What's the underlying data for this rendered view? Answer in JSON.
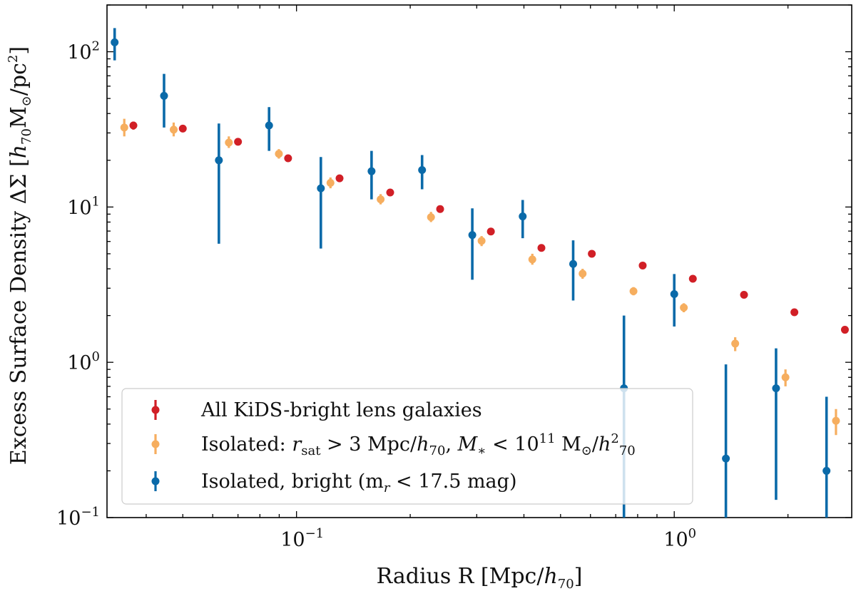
{
  "chart_data": {
    "type": "scatter",
    "title": "",
    "xlabel": {
      "main": "Radius R [Mpc/",
      "unit_var": "h",
      "unit_sub": "70",
      "close": "]"
    },
    "ylabel": {
      "main": "Excess Surface Density ΔΣ [",
      "var": "h",
      "var_sub": "70",
      "mass": "M",
      "sun": "⊙",
      "tail": "/pc",
      "exp": "2",
      "close": "]"
    },
    "xscale": "log",
    "yscale": "log",
    "xlim": [
      0.0315,
      2.95
    ],
    "ylim": [
      0.1,
      200
    ],
    "x_ticks": [
      {
        "value": 0.1,
        "base": "10",
        "exp": "−1"
      },
      {
        "value": 1,
        "base": "10",
        "exp": "0"
      }
    ],
    "y_ticks": [
      {
        "value": 0.1,
        "base": "10",
        "exp": "−1"
      },
      {
        "value": 1,
        "base": "10",
        "exp": "0"
      },
      {
        "value": 10,
        "base": "10",
        "exp": "1"
      },
      {
        "value": 100,
        "base": "10",
        "exp": "2"
      }
    ],
    "legend_position": "lower-left",
    "series": [
      {
        "name": "All KiDS-bright lens galaxies",
        "legend": {
          "text": "All KiDS-bright lens galaxies"
        },
        "color": "#d11f26",
        "points": [
          {
            "x": 0.037,
            "y": 33.5,
            "lo": 31.5,
            "hi": 35.5
          },
          {
            "x": 0.05,
            "y": 32.0,
            "lo": 31.0,
            "hi": 33.0
          },
          {
            "x": 0.07,
            "y": 26.3,
            "lo": 25.5,
            "hi": 27.0
          },
          {
            "x": 0.095,
            "y": 20.6,
            "lo": 20.0,
            "hi": 21.3
          },
          {
            "x": 0.13,
            "y": 15.3,
            "lo": 14.9,
            "hi": 15.8
          },
          {
            "x": 0.177,
            "y": 12.4,
            "lo": 12.0,
            "hi": 12.8
          },
          {
            "x": 0.24,
            "y": 9.7,
            "lo": 9.4,
            "hi": 10.0
          },
          {
            "x": 0.327,
            "y": 6.95,
            "lo": 6.75,
            "hi": 7.15
          },
          {
            "x": 0.445,
            "y": 5.45,
            "lo": 5.3,
            "hi": 5.6
          },
          {
            "x": 0.605,
            "y": 5.0,
            "lo": 4.85,
            "hi": 5.15
          },
          {
            "x": 0.825,
            "y": 4.2,
            "lo": 4.1,
            "hi": 4.3
          },
          {
            "x": 1.12,
            "y": 3.45,
            "lo": 3.35,
            "hi": 3.55
          },
          {
            "x": 1.53,
            "y": 2.72,
            "lo": 2.65,
            "hi": 2.8
          },
          {
            "x": 2.08,
            "y": 2.1,
            "lo": 2.04,
            "hi": 2.16
          },
          {
            "x": 2.83,
            "y": 1.62,
            "lo": 1.57,
            "hi": 1.67
          }
        ]
      },
      {
        "name": "Isolated: r_sat > 3 Mpc/h70, M* < 10^11 M☉/h70^2",
        "legend": {
          "pre": "Isolated: ",
          "r": "r",
          "r_sub": "sat",
          "mid": " > 3 Mpc/",
          "h": "h",
          "h_sub": "70",
          "comma": ", ",
          "m": "M",
          "m_sub": "∗",
          "lt": " < 10",
          "exp": "11",
          "msun": " M",
          "sun": "⊙",
          "slash": "/",
          "h2": "h",
          "h2_sub": "70",
          "h2_sup": "2"
        },
        "color": "#f6ae5f",
        "points": [
          {
            "x": 0.035,
            "y": 32.5,
            "lo": 28.5,
            "hi": 37.0
          },
          {
            "x": 0.0473,
            "y": 31.5,
            "lo": 28.5,
            "hi": 35.0
          },
          {
            "x": 0.0662,
            "y": 26.0,
            "lo": 24.0,
            "hi": 28.5
          },
          {
            "x": 0.0898,
            "y": 22.0,
            "lo": 20.5,
            "hi": 23.6
          },
          {
            "x": 0.123,
            "y": 14.3,
            "lo": 13.2,
            "hi": 15.5
          },
          {
            "x": 0.167,
            "y": 11.2,
            "lo": 10.4,
            "hi": 12.1
          },
          {
            "x": 0.227,
            "y": 8.6,
            "lo": 8.0,
            "hi": 9.3
          },
          {
            "x": 0.309,
            "y": 6.05,
            "lo": 5.6,
            "hi": 6.5
          },
          {
            "x": 0.421,
            "y": 4.6,
            "lo": 4.25,
            "hi": 5.0
          },
          {
            "x": 0.572,
            "y": 3.72,
            "lo": 3.45,
            "hi": 4.0
          },
          {
            "x": 0.78,
            "y": 2.87,
            "lo": 2.7,
            "hi": 3.05
          },
          {
            "x": 1.06,
            "y": 2.25,
            "lo": 2.1,
            "hi": 2.4
          },
          {
            "x": 1.45,
            "y": 1.32,
            "lo": 1.18,
            "hi": 1.45
          },
          {
            "x": 1.97,
            "y": 0.8,
            "lo": 0.7,
            "hi": 0.9
          },
          {
            "x": 2.68,
            "y": 0.42,
            "lo": 0.34,
            "hi": 0.5
          }
        ]
      },
      {
        "name": "Isolated, bright (m_r < 17.5 mag)",
        "legend": {
          "pre": "Isolated, bright (m",
          "sub": "r",
          "post": " < 17.5 mag)"
        },
        "color": "#0a6aa9",
        "points": [
          {
            "x": 0.033,
            "y": 115.0,
            "lo": 88.0,
            "hi": 142.0
          },
          {
            "x": 0.0446,
            "y": 52.0,
            "lo": 32.5,
            "hi": 72.0
          },
          {
            "x": 0.0623,
            "y": 20.0,
            "lo": 5.8,
            "hi": 34.5
          },
          {
            "x": 0.0846,
            "y": 33.5,
            "lo": 23.0,
            "hi": 44.0
          },
          {
            "x": 0.116,
            "y": 13.2,
            "lo": 5.4,
            "hi": 21.0
          },
          {
            "x": 0.158,
            "y": 17.0,
            "lo": 11.2,
            "hi": 23.0
          },
          {
            "x": 0.215,
            "y": 17.3,
            "lo": 13.0,
            "hi": 21.6
          },
          {
            "x": 0.292,
            "y": 6.6,
            "lo": 3.4,
            "hi": 9.8
          },
          {
            "x": 0.397,
            "y": 8.7,
            "lo": 6.3,
            "hi": 11.1
          },
          {
            "x": 0.54,
            "y": 4.3,
            "lo": 2.5,
            "hi": 6.1
          },
          {
            "x": 0.736,
            "y": 0.68,
            "lo": 0.1,
            "hi": 2.0
          },
          {
            "x": 1.0,
            "y": 2.75,
            "lo": 1.7,
            "hi": 3.7
          },
          {
            "x": 1.37,
            "y": 0.24,
            "lo": 0.1,
            "hi": 0.97
          },
          {
            "x": 1.86,
            "y": 0.68,
            "lo": 0.13,
            "hi": 1.23
          },
          {
            "x": 2.53,
            "y": 0.2,
            "lo": 0.1,
            "hi": 0.6
          }
        ]
      }
    ]
  }
}
